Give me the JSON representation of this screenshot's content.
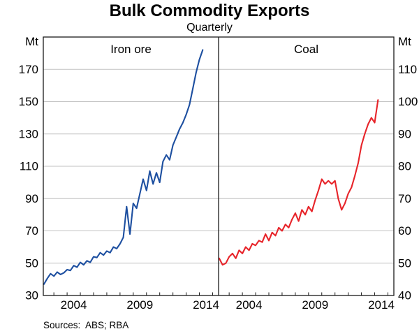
{
  "title": "Bulk Commodity Exports",
  "subtitle": "Quarterly",
  "sources": "Sources:  ABS; RBA",
  "chart_data": {
    "type": "line",
    "title": "Bulk Commodity Exports",
    "subtitle": "Quarterly",
    "frequency": "quarterly",
    "grid": true,
    "grid_color": "#c2c2c2",
    "axis_color": "#1a1a1a",
    "x_start": 2002.25,
    "x_step": 0.25,
    "xlim": [
      2002.2,
      2015.45
    ],
    "x_year_ticks": [
      2003,
      2004,
      2005,
      2006,
      2007,
      2008,
      2009,
      2010,
      2011,
      2012,
      2013,
      2014,
      2015
    ],
    "x_tick_labels": [
      {
        "text": "2004",
        "x": 2004.5
      },
      {
        "text": "2009",
        "x": 2009.5
      },
      {
        "text": "2014",
        "x": 2014.5
      }
    ],
    "panels": [
      {
        "label": "Iron ore",
        "unit": "Mt",
        "axis_side": "left",
        "color": "#1d4fa0",
        "ylim": [
          30,
          190
        ],
        "yticks": [
          30,
          50,
          70,
          90,
          110,
          130,
          150,
          170
        ],
        "values": [
          37,
          40.5,
          43.5,
          42,
          44.5,
          43,
          44,
          46,
          45.5,
          48.5,
          47.5,
          50.5,
          49,
          51.5,
          50.5,
          54,
          53.5,
          56.5,
          55,
          57.5,
          56.5,
          60,
          59,
          62,
          66,
          85,
          68,
          87,
          84,
          93,
          102,
          95,
          107,
          99,
          106,
          100,
          113,
          117,
          114,
          123,
          128,
          133,
          137,
          142,
          148,
          158,
          168,
          176,
          182
        ]
      },
      {
        "label": "Coal",
        "unit": "Mt",
        "axis_side": "right",
        "color": "#e7242a",
        "ylim": [
          40,
          120
        ],
        "yticks": [
          40,
          50,
          60,
          70,
          80,
          90,
          100,
          110
        ],
        "values": [
          51.5,
          49.5,
          50,
          52,
          53,
          51.5,
          54,
          53,
          55,
          54,
          56,
          55.5,
          57,
          56.5,
          59,
          57,
          59.5,
          58.5,
          61,
          60,
          62,
          61,
          63.5,
          65.5,
          63,
          66.5,
          65,
          67.5,
          66,
          69.5,
          72.5,
          76,
          74.5,
          75.5,
          74.5,
          75.5,
          70,
          66.5,
          68.5,
          71.5,
          73.5,
          77,
          81,
          86.5,
          90,
          93,
          95,
          93.5,
          100.5
        ]
      }
    ]
  }
}
